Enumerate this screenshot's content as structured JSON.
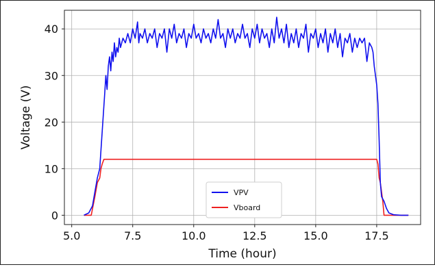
{
  "chart_data": {
    "type": "line",
    "xlabel": "Time (hour)",
    "ylabel": "Voltage (V)",
    "xlim": [
      4.7,
      19.3
    ],
    "ylim": [
      -2,
      44
    ],
    "xticks": [
      "5.0",
      "7.5",
      "10.0",
      "12.5",
      "15.0",
      "17.5"
    ],
    "xtick_values": [
      5.0,
      7.5,
      10.0,
      12.5,
      15.0,
      17.5
    ],
    "yticks": [
      "0",
      "10",
      "20",
      "30",
      "40"
    ],
    "ytick_values": [
      0,
      10,
      20,
      30,
      40
    ],
    "grid": true,
    "legend_position": "bottom-center",
    "series": [
      {
        "name": "VPV",
        "color": "#1010ee",
        "x": [
          5.5,
          5.7,
          5.85,
          5.95,
          6.05,
          6.15,
          6.2,
          6.25,
          6.3,
          6.35,
          6.4,
          6.45,
          6.5,
          6.55,
          6.6,
          6.65,
          6.7,
          6.75,
          6.8,
          6.85,
          6.9,
          6.95,
          7.0,
          7.1,
          7.2,
          7.3,
          7.4,
          7.5,
          7.6,
          7.7,
          7.75,
          7.8,
          7.9,
          8.0,
          8.1,
          8.2,
          8.3,
          8.4,
          8.5,
          8.6,
          8.7,
          8.8,
          8.9,
          9.0,
          9.1,
          9.2,
          9.3,
          9.4,
          9.5,
          9.6,
          9.7,
          9.8,
          9.9,
          10.0,
          10.1,
          10.2,
          10.3,
          10.4,
          10.5,
          10.6,
          10.7,
          10.8,
          10.9,
          11.0,
          11.1,
          11.2,
          11.3,
          11.4,
          11.5,
          11.6,
          11.7,
          11.8,
          11.9,
          12.0,
          12.1,
          12.2,
          12.3,
          12.4,
          12.5,
          12.6,
          12.7,
          12.8,
          12.9,
          13.0,
          13.1,
          13.2,
          13.3,
          13.4,
          13.5,
          13.6,
          13.7,
          13.8,
          13.9,
          14.0,
          14.1,
          14.2,
          14.3,
          14.4,
          14.5,
          14.6,
          14.7,
          14.8,
          14.9,
          15.0,
          15.1,
          15.2,
          15.3,
          15.4,
          15.5,
          15.6,
          15.7,
          15.8,
          15.9,
          16.0,
          16.1,
          16.2,
          16.3,
          16.4,
          16.5,
          16.6,
          16.7,
          16.8,
          16.9,
          17.0,
          17.1,
          17.2,
          17.3,
          17.35,
          17.4,
          17.45,
          17.5,
          17.55,
          17.6,
          17.65,
          17.7,
          17.8,
          17.9,
          18.0,
          18.2,
          18.5,
          18.8
        ],
        "y": [
          0,
          0.5,
          2,
          5,
          8,
          10,
          14,
          18,
          22,
          26,
          30,
          27,
          32,
          34,
          31,
          35,
          33,
          37,
          34,
          36,
          35,
          38,
          36,
          38,
          37,
          39,
          37,
          40,
          38,
          41.5,
          37,
          39,
          38,
          40,
          37,
          39,
          38,
          40,
          36,
          39,
          38,
          40,
          35,
          40,
          38,
          41,
          37,
          39,
          38,
          40,
          36,
          39,
          38,
          41,
          38,
          39,
          37,
          40,
          38,
          39,
          37,
          40,
          38,
          42,
          38,
          39,
          36,
          40,
          38,
          40,
          37,
          39,
          38,
          41,
          38,
          39,
          36,
          40,
          38,
          41,
          37,
          40,
          38,
          39,
          36,
          40,
          37,
          42.5,
          38,
          40,
          37,
          41,
          36,
          39,
          37,
          40,
          36,
          39,
          38,
          41,
          35,
          39,
          38,
          40,
          36,
          39,
          37,
          40,
          35,
          39,
          37,
          40,
          36,
          39,
          34,
          38,
          37,
          39,
          35,
          38,
          36,
          38,
          37,
          38,
          33,
          37,
          36,
          35,
          32,
          30,
          28,
          24,
          16,
          7,
          4,
          3,
          1.5,
          0.5,
          0.1,
          0,
          0
        ],
        "noise": [
          7.3,
          9.0,
          11.2,
          12.8
        ]
      },
      {
        "name": "Vboard",
        "color": "#ee2020",
        "x": [
          5.5,
          5.8,
          5.95,
          6.05,
          6.15,
          6.2,
          6.25,
          6.32,
          6.4,
          17.5,
          17.55,
          17.6,
          17.65,
          17.7,
          17.75,
          17.8,
          17.9,
          18.8
        ],
        "y": [
          0,
          0,
          4,
          7,
          8,
          10,
          11,
          12,
          12,
          12,
          11,
          8,
          7,
          5,
          3,
          0,
          0,
          0
        ]
      }
    ]
  }
}
